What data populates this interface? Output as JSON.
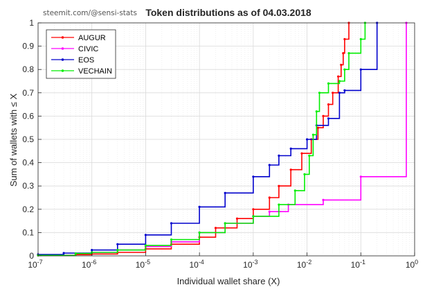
{
  "watermark": "steemit.com/@sensi-stats",
  "chart_data": {
    "type": "line",
    "title": "Token distributions as of 04.03.2018",
    "xlabel": "Individual wallet share (X)",
    "ylabel": "Sum of wallets with ≤ X",
    "xscale": "log",
    "xlim": [
      1e-07,
      1
    ],
    "ylim": [
      0,
      1
    ],
    "x_tick_labels": [
      "10^-7",
      "10^-6",
      "10^-5",
      "10^-4",
      "10^-3",
      "10^-2",
      "10^-1",
      "10^0"
    ],
    "y_tick_labels": [
      "0",
      "0.1",
      "0.2",
      "0.3",
      "0.4",
      "0.5",
      "0.6",
      "0.7",
      "0.8",
      "0.9",
      "1"
    ],
    "grid": true,
    "minor_grid": true,
    "legend_position": "top-left",
    "series": [
      {
        "name": "AUGUR",
        "color": "#ff0000",
        "points": [
          [
            1e-07,
            0.002
          ],
          [
            5e-07,
            0.005
          ],
          [
            1e-06,
            0.008
          ],
          [
            3e-06,
            0.015
          ],
          [
            1e-05,
            0.03
          ],
          [
            3e-05,
            0.05
          ],
          [
            0.0001,
            0.08
          ],
          [
            0.0002,
            0.12
          ],
          [
            0.0005,
            0.16
          ],
          [
            0.001,
            0.2
          ],
          [
            0.002,
            0.25
          ],
          [
            0.003,
            0.3
          ],
          [
            0.005,
            0.37
          ],
          [
            0.008,
            0.44
          ],
          [
            0.012,
            0.5
          ],
          [
            0.016,
            0.55
          ],
          [
            0.02,
            0.6
          ],
          [
            0.025,
            0.65
          ],
          [
            0.03,
            0.7
          ],
          [
            0.038,
            0.77
          ],
          [
            0.043,
            0.82
          ],
          [
            0.047,
            0.87
          ],
          [
            0.05,
            0.93
          ],
          [
            0.06,
            1.0
          ]
        ]
      },
      {
        "name": "CIVIC",
        "color": "#ff00ff",
        "points": [
          [
            1e-07,
            0.003
          ],
          [
            5e-07,
            0.01
          ],
          [
            1e-06,
            0.015
          ],
          [
            3e-06,
            0.025
          ],
          [
            1e-05,
            0.04
          ],
          [
            3e-05,
            0.06
          ],
          [
            0.0001,
            0.1
          ],
          [
            0.0003,
            0.14
          ],
          [
            0.001,
            0.17
          ],
          [
            0.002,
            0.19
          ],
          [
            0.0045,
            0.22
          ],
          [
            0.02,
            0.24
          ],
          [
            0.1,
            0.34
          ],
          [
            0.7,
            1.0
          ]
        ]
      },
      {
        "name": "EOS",
        "color": "#0000cc",
        "points": [
          [
            1e-07,
            0.006
          ],
          [
            3e-07,
            0.012
          ],
          [
            1e-06,
            0.025
          ],
          [
            3e-06,
            0.05
          ],
          [
            1e-05,
            0.09
          ],
          [
            3e-05,
            0.14
          ],
          [
            0.0001,
            0.21
          ],
          [
            0.0003,
            0.27
          ],
          [
            0.001,
            0.34
          ],
          [
            0.002,
            0.39
          ],
          [
            0.003,
            0.43
          ],
          [
            0.005,
            0.46
          ],
          [
            0.01,
            0.5
          ],
          [
            0.015,
            0.56
          ],
          [
            0.025,
            0.59
          ],
          [
            0.04,
            0.7
          ],
          [
            0.05,
            0.71
          ],
          [
            0.1,
            0.8
          ],
          [
            0.2,
            1.0
          ]
        ]
      },
      {
        "name": "VECHAIN",
        "color": "#00ee00",
        "points": [
          [
            1e-07,
            0.002
          ],
          [
            5e-07,
            0.01
          ],
          [
            1e-06,
            0.015
          ],
          [
            3e-06,
            0.025
          ],
          [
            1e-05,
            0.045
          ],
          [
            3e-05,
            0.07
          ],
          [
            0.0001,
            0.1
          ],
          [
            0.0003,
            0.14
          ],
          [
            0.001,
            0.17
          ],
          [
            0.003,
            0.22
          ],
          [
            0.006,
            0.28
          ],
          [
            0.009,
            0.35
          ],
          [
            0.011,
            0.43
          ],
          [
            0.013,
            0.52
          ],
          [
            0.015,
            0.62
          ],
          [
            0.017,
            0.7
          ],
          [
            0.025,
            0.74
          ],
          [
            0.04,
            0.75
          ],
          [
            0.05,
            0.8
          ],
          [
            0.06,
            0.87
          ],
          [
            0.1,
            0.93
          ],
          [
            0.12,
            1.0
          ]
        ]
      }
    ]
  }
}
